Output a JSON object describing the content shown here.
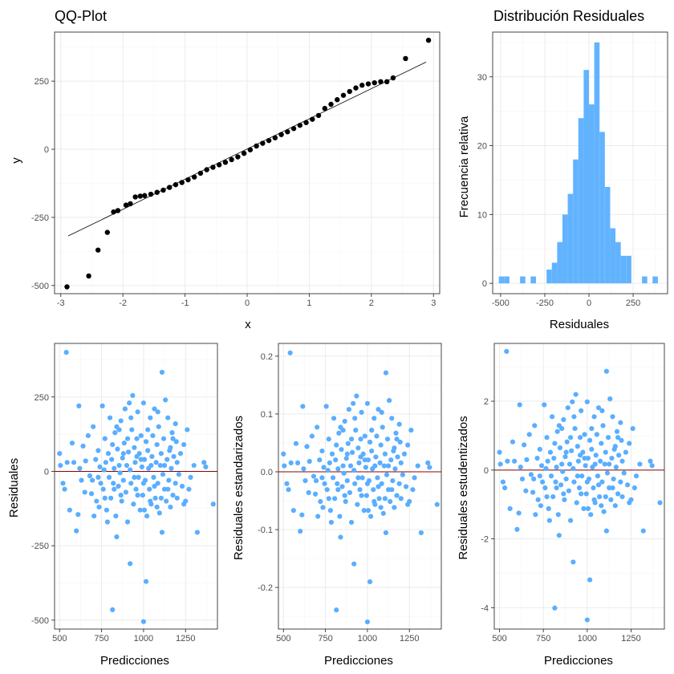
{
  "colors": {
    "point_blue": "#5aaeff",
    "hist_fill": "#62b3ff",
    "qq_point": "#000000",
    "zero_line": "#8b0000"
  },
  "chart_data": [
    {
      "id": "qq",
      "type": "scatter",
      "title": "QQ-Plot",
      "xlabel": "x",
      "ylabel": "y",
      "xlim": [
        -3.1,
        3.1
      ],
      "ylim": [
        -530,
        430
      ],
      "xticks": [
        -3,
        -2,
        -1,
        0,
        1,
        2,
        3
      ],
      "yticks": [
        -500,
        -250,
        0,
        250
      ],
      "reference_line": {
        "x": [
          -2.88,
          2.88
        ],
        "y": [
          -318,
          320
        ]
      },
      "points": [
        [
          -2.9,
          -505
        ],
        [
          -2.55,
          -465
        ],
        [
          -2.4,
          -370
        ],
        [
          -2.25,
          -305
        ],
        [
          -2.15,
          -230
        ],
        [
          -2.08,
          -225
        ],
        [
          -1.95,
          -205
        ],
        [
          -1.88,
          -200
        ],
        [
          -1.8,
          -175
        ],
        [
          -1.72,
          -172
        ],
        [
          -1.65,
          -170
        ],
        [
          -1.55,
          -165
        ],
        [
          -1.45,
          -158
        ],
        [
          -1.35,
          -150
        ],
        [
          -1.25,
          -140
        ],
        [
          -1.15,
          -130
        ],
        [
          -1.05,
          -122
        ],
        [
          -0.95,
          -112
        ],
        [
          -0.85,
          -102
        ],
        [
          -0.75,
          -88
        ],
        [
          -0.65,
          -75
        ],
        [
          -0.55,
          -66
        ],
        [
          -0.45,
          -57
        ],
        [
          -0.35,
          -48
        ],
        [
          -0.25,
          -38
        ],
        [
          -0.15,
          -28
        ],
        [
          -0.05,
          -15
        ],
        [
          0.05,
          -2
        ],
        [
          0.15,
          12
        ],
        [
          0.25,
          22
        ],
        [
          0.35,
          32
        ],
        [
          0.45,
          42
        ],
        [
          0.55,
          54
        ],
        [
          0.65,
          64
        ],
        [
          0.75,
          76
        ],
        [
          0.85,
          88
        ],
        [
          0.95,
          98
        ],
        [
          1.05,
          110
        ],
        [
          1.15,
          124
        ],
        [
          1.25,
          150
        ],
        [
          1.35,
          165
        ],
        [
          1.45,
          182
        ],
        [
          1.55,
          198
        ],
        [
          1.65,
          212
        ],
        [
          1.75,
          225
        ],
        [
          1.85,
          235
        ],
        [
          1.95,
          240
        ],
        [
          2.05,
          244
        ],
        [
          2.15,
          248
        ],
        [
          2.25,
          248
        ],
        [
          2.35,
          262
        ],
        [
          2.55,
          333
        ],
        [
          2.92,
          400
        ]
      ]
    },
    {
      "id": "hist",
      "type": "bar",
      "title": "Distribución Residuales",
      "xlabel": "Residuales",
      "ylabel": "Frecuencia relativa",
      "xlim": [
        -545,
        445
      ],
      "ylim": [
        -1.5,
        36.5
      ],
      "xticks": [
        -500,
        -250,
        0,
        250
      ],
      "yticks": [
        0,
        10,
        20,
        30
      ],
      "bin_width": 30,
      "bins": [
        {
          "start": -510,
          "count": 1
        },
        {
          "start": -480,
          "count": 1
        },
        {
          "start": -390,
          "count": 1
        },
        {
          "start": -330,
          "count": 1
        },
        {
          "start": -240,
          "count": 2
        },
        {
          "start": -210,
          "count": 3
        },
        {
          "start": -180,
          "count": 6
        },
        {
          "start": -150,
          "count": 10
        },
        {
          "start": -120,
          "count": 13
        },
        {
          "start": -90,
          "count": 18
        },
        {
          "start": -60,
          "count": 24
        },
        {
          "start": -30,
          "count": 31
        },
        {
          "start": 0,
          "count": 26
        },
        {
          "start": 30,
          "count": 35
        },
        {
          "start": 60,
          "count": 22
        },
        {
          "start": 90,
          "count": 14
        },
        {
          "start": 120,
          "count": 8
        },
        {
          "start": 150,
          "count": 6
        },
        {
          "start": 180,
          "count": 4
        },
        {
          "start": 210,
          "count": 4
        },
        {
          "start": 300,
          "count": 1
        },
        {
          "start": 360,
          "count": 1
        }
      ]
    },
    {
      "id": "resid",
      "type": "scatter",
      "xlabel": "Predicciones",
      "ylabel": "Residuales",
      "xlim": [
        470,
        1440
      ],
      "ylim": [
        -530,
        430
      ],
      "xticks": [
        500,
        750,
        1000,
        1250
      ],
      "yticks": [
        -500,
        -250,
        0,
        250
      ],
      "hline": 0
    },
    {
      "id": "std",
      "type": "scatter",
      "xlabel": "Predicciones",
      "ylabel": "Residuales estandarizados",
      "xlim": [
        470,
        1440
      ],
      "ylim": [
        -0.272,
        0.222
      ],
      "xticks": [
        500,
        750,
        1000,
        1250
      ],
      "yticks": [
        -0.2,
        -0.1,
        0.0,
        0.1,
        0.2
      ],
      "ytick_labels": [
        "-0.2",
        "-0.1",
        "0.0",
        "0.1",
        "0.2"
      ],
      "scale": 0.000514,
      "hline": 0
    },
    {
      "id": "stud",
      "type": "scatter",
      "xlabel": "Predicciones",
      "ylabel": "Residuales estudentizados",
      "xlim": [
        470,
        1440
      ],
      "ylim": [
        -4.62,
        3.68
      ],
      "xticks": [
        500,
        750,
        1000,
        1250
      ],
      "yticks": [
        -4,
        -2,
        0,
        2
      ],
      "scale": 0.00862,
      "hline": 0
    }
  ],
  "residual_points": [
    [
      540,
      400
    ],
    [
      1110,
      333
    ],
    [
      815,
      -465
    ],
    [
      1000,
      -505
    ],
    [
      1015,
      -370
    ],
    [
      920,
      -310
    ],
    [
      1110,
      -205
    ],
    [
      1320,
      -205
    ],
    [
      1415,
      -110
    ],
    [
      1370,
      15
    ],
    [
      1360,
      30
    ],
    [
      1300,
      20
    ],
    [
      1250,
      -100
    ],
    [
      1240,
      -110
    ],
    [
      1200,
      -90
    ],
    [
      500,
      60
    ],
    [
      505,
      20
    ],
    [
      520,
      -40
    ],
    [
      530,
      -60
    ],
    [
      545,
      30
    ],
    [
      560,
      -130
    ],
    [
      575,
      95
    ],
    [
      585,
      30
    ],
    [
      600,
      -200
    ],
    [
      610,
      -145
    ],
    [
      615,
      220
    ],
    [
      630,
      -30
    ],
    [
      640,
      85
    ],
    [
      655,
      35
    ],
    [
      670,
      120
    ],
    [
      680,
      -15
    ],
    [
      690,
      -75
    ],
    [
      700,
      150
    ],
    [
      705,
      -150
    ],
    [
      715,
      40
    ],
    [
      720,
      -100
    ],
    [
      730,
      70
    ],
    [
      740,
      15
    ],
    [
      745,
      -40
    ],
    [
      755,
      220
    ],
    [
      760,
      -60
    ],
    [
      770,
      110
    ],
    [
      775,
      30
    ],
    [
      780,
      -130
    ],
    [
      790,
      60
    ],
    [
      795,
      -20
    ],
    [
      800,
      180
    ],
    [
      805,
      -90
    ],
    [
      810,
      40
    ],
    [
      820,
      -40
    ],
    [
      825,
      10
    ],
    [
      830,
      130
    ],
    [
      835,
      -150
    ],
    [
      840,
      -220
    ],
    [
      845,
      75
    ],
    [
      850,
      -50
    ],
    [
      855,
      20
    ],
    [
      860,
      -5
    ],
    [
      865,
      170
    ],
    [
      870,
      -100
    ],
    [
      875,
      45
    ],
    [
      880,
      -30
    ],
    [
      885,
      95
    ],
    [
      890,
      210
    ],
    [
      895,
      -70
    ],
    [
      900,
      20
    ],
    [
      905,
      -170
    ],
    [
      910,
      65
    ],
    [
      915,
      230
    ],
    [
      920,
      5
    ],
    [
      925,
      -40
    ],
    [
      930,
      140
    ],
    [
      935,
      255
    ],
    [
      940,
      -110
    ],
    [
      945,
      80
    ],
    [
      950,
      30
    ],
    [
      955,
      -60
    ],
    [
      960,
      110
    ],
    [
      965,
      200
    ],
    [
      970,
      -20
    ],
    [
      975,
      60
    ],
    [
      980,
      -130
    ],
    [
      985,
      120
    ],
    [
      990,
      15
    ],
    [
      995,
      -80
    ],
    [
      1000,
      230
    ],
    [
      1005,
      40
    ],
    [
      1010,
      -30
    ],
    [
      1015,
      100
    ],
    [
      1020,
      -150
    ],
    [
      1025,
      70
    ],
    [
      1030,
      10
    ],
    [
      1035,
      -60
    ],
    [
      1040,
      180
    ],
    [
      1045,
      -110
    ],
    [
      1050,
      50
    ],
    [
      1055,
      120
    ],
    [
      1060,
      -20
    ],
    [
      1065,
      210
    ],
    [
      1070,
      -90
    ],
    [
      1075,
      30
    ],
    [
      1080,
      90
    ],
    [
      1085,
      -40
    ],
    [
      1090,
      150
    ],
    [
      1095,
      -140
    ],
    [
      1100,
      20
    ],
    [
      1105,
      60
    ],
    [
      1115,
      -10
    ],
    [
      1120,
      110
    ],
    [
      1125,
      -60
    ],
    [
      1130,
      240
    ],
    [
      1135,
      -100
    ],
    [
      1140,
      40
    ],
    [
      1145,
      180
    ],
    [
      1150,
      -30
    ],
    [
      1155,
      70
    ],
    [
      1160,
      -120
    ],
    [
      1165,
      10
    ],
    [
      1170,
      130
    ],
    [
      1175,
      -80
    ],
    [
      1180,
      50
    ],
    [
      1190,
      -40
    ],
    [
      1195,
      100
    ],
    [
      1210,
      -10
    ],
    [
      1220,
      60
    ],
    [
      1230,
      -50
    ],
    [
      1260,
      140
    ],
    [
      1280,
      -20
    ],
    [
      620,
      10
    ],
    [
      650,
      -70
    ],
    [
      695,
      -30
    ],
    [
      735,
      -120
    ],
    [
      765,
      5
    ],
    [
      785,
      -170
    ],
    [
      815,
      90
    ],
    [
      825,
      -60
    ],
    [
      855,
      140
    ],
    [
      865,
      -80
    ],
    [
      905,
      110
    ],
    [
      925,
      180
    ],
    [
      945,
      -20
    ],
    [
      965,
      -80
    ],
    [
      985,
      40
    ],
    [
      1005,
      -130
    ],
    [
      1025,
      140
    ],
    [
      1045,
      20
    ],
    [
      1065,
      -50
    ],
    [
      1085,
      200
    ],
    [
      1105,
      -90
    ],
    [
      1125,
      20
    ],
    [
      1145,
      -60
    ],
    [
      1175,
      110
    ],
    [
      1200,
      30
    ],
    [
      1240,
      90
    ],
    [
      1270,
      -60
    ],
    [
      730,
      -20
    ],
    [
      770,
      -90
    ],
    [
      840,
      150
    ],
    [
      880,
      60
    ],
    [
      960,
      50
    ],
    [
      1000,
      -40
    ],
    [
      1040,
      -100
    ],
    [
      1080,
      -120
    ],
    [
      1160,
      80
    ],
    [
      1190,
      160
    ]
  ]
}
